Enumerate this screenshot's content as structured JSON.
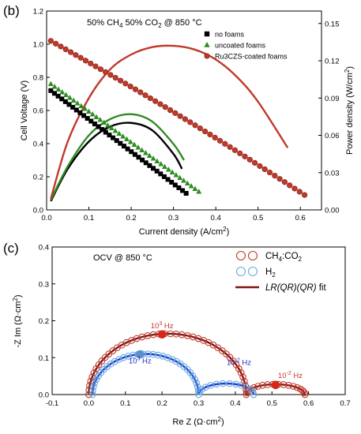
{
  "chart_data": [
    {
      "type": "scatter",
      "panel_label": "(b)",
      "annotation_parts": [
        "50% CH",
        "4",
        " 50% CO",
        "2",
        " @ 850 °C"
      ],
      "xlabel": "Current density (A/cm²)",
      "ylabel": "Cell Voltage (V)",
      "y2label": "Power density (W/cm²)",
      "xlim": [
        0,
        0.65
      ],
      "ylim": [
        0,
        1.2
      ],
      "y2lim": [
        0,
        0.16
      ],
      "xticks": [
        "0.0",
        "0.1",
        "0.2",
        "0.3",
        "0.4",
        "0.5",
        "0.6"
      ],
      "yticks": [
        "0.0",
        "0.2",
        "0.4",
        "0.6",
        "0.8",
        "1.0",
        "1.2"
      ],
      "y2ticks": [
        "0.00",
        "0.03",
        "0.06",
        "0.09",
        "0.12",
        "0.15"
      ],
      "legend_position": "top-right",
      "series": [
        {
          "name": "no foams",
          "marker": "square",
          "color": "#000000",
          "voltage": {
            "x_start": 0.01,
            "x_end": 0.33,
            "v_start": 0.72,
            "v_end": 0.1,
            "n": 38
          },
          "power": {
            "x": [
              0.01,
              0.05,
              0.1,
              0.15,
              0.2,
              0.25,
              0.3,
              0.32
            ],
            "y": [
              0.007,
              0.033,
              0.055,
              0.067,
              0.07,
              0.064,
              0.045,
              0.033
            ]
          }
        },
        {
          "name": "uncoated foams",
          "marker": "triangle",
          "color": "#2e8b22",
          "voltage": {
            "x_start": 0.01,
            "x_end": 0.36,
            "v_start": 0.76,
            "v_end": 0.11,
            "n": 40
          },
          "power": {
            "x": [
              0.01,
              0.05,
              0.1,
              0.15,
              0.2,
              0.25,
              0.3,
              0.325
            ],
            "y": [
              0.008,
              0.035,
              0.06,
              0.073,
              0.077,
              0.071,
              0.053,
              0.04
            ]
          }
        },
        {
          "name": "Ru3CZS-coated foams",
          "marker": "circle",
          "color": "#c0392b",
          "voltage": {
            "x_start": 0.01,
            "x_end": 0.61,
            "v_start": 1.02,
            "v_end": 0.09,
            "n": 52
          },
          "power": {
            "x": [
              0.01,
              0.05,
              0.1,
              0.15,
              0.2,
              0.25,
              0.3,
              0.35,
              0.4,
              0.45,
              0.5,
              0.57
            ],
            "y": [
              0.009,
              0.055,
              0.09,
              0.113,
              0.125,
              0.131,
              0.132,
              0.129,
              0.121,
              0.107,
              0.087,
              0.05
            ]
          }
        }
      ]
    },
    {
      "type": "scatter",
      "panel_label": "(c)",
      "annotation": "OCV @ 850 °C",
      "xlabel": "Re Z (Ω·cm²)",
      "ylabel": "-Z Im (Ω·cm²)",
      "xlim": [
        -0.1,
        0.7
      ],
      "ylim": [
        0,
        0.4
      ],
      "xticks": [
        "-0.1",
        "0.0",
        "0.1",
        "0.2",
        "0.3",
        "0.4",
        "0.5",
        "0.6",
        "0.7"
      ],
      "yticks": [
        "0.0",
        "0.1",
        "0.2",
        "0.3",
        "0.4"
      ],
      "legend_position": "top-right",
      "legend": [
        {
          "parts": [
            "CH",
            "4",
            ":CO",
            "2"
          ],
          "marker": "open-circle",
          "color": "#c0392b"
        },
        {
          "parts": [
            "H",
            "2"
          ],
          "marker": "open-circle",
          "color": "#6aa9dc"
        },
        {
          "parts": [
            "LR(QR)(QR)",
            " fit"
          ],
          "marker": "line",
          "color": "#7b1515"
        }
      ],
      "freq_labels": [
        {
          "base": "10",
          "exp": "3",
          "unit": " Hz",
          "color": "#c0392b",
          "x": 0.2,
          "y": 0.18
        },
        {
          "base": "10",
          "exp": "3",
          "unit": " Hz",
          "color": "#2a2ad0",
          "x": 0.14,
          "y": 0.085
        },
        {
          "base": "10",
          "exp": "-2",
          "unit": " Hz",
          "color": "#2a2ad0",
          "x": 0.41,
          "y": 0.08
        },
        {
          "base": "10",
          "exp": "-2",
          "unit": " Hz",
          "color": "#c0392b",
          "x": 0.55,
          "y": 0.045
        }
      ],
      "series": [
        {
          "name": "CH4:CO2",
          "color": "#c0392b",
          "arc1": {
            "x_start": 0.0,
            "x_end": 0.43,
            "peak": 0.165
          },
          "arc2": {
            "x_start": 0.43,
            "x_end": 0.59,
            "peak": 0.028
          },
          "n_points": 60,
          "highlight": [
            {
              "x": 0.2,
              "y": 0.163
            },
            {
              "x": 0.51,
              "y": 0.026
            }
          ]
        },
        {
          "name": "H2",
          "color": "#6aa9dc",
          "arc1": {
            "x_start": 0.01,
            "x_end": 0.3,
            "peak": 0.11
          },
          "arc2": {
            "x_start": 0.3,
            "x_end": 0.45,
            "peak": 0.03
          },
          "n_points": 46,
          "highlight": [
            {
              "x": 0.14,
              "y": 0.109
            }
          ]
        }
      ]
    }
  ]
}
